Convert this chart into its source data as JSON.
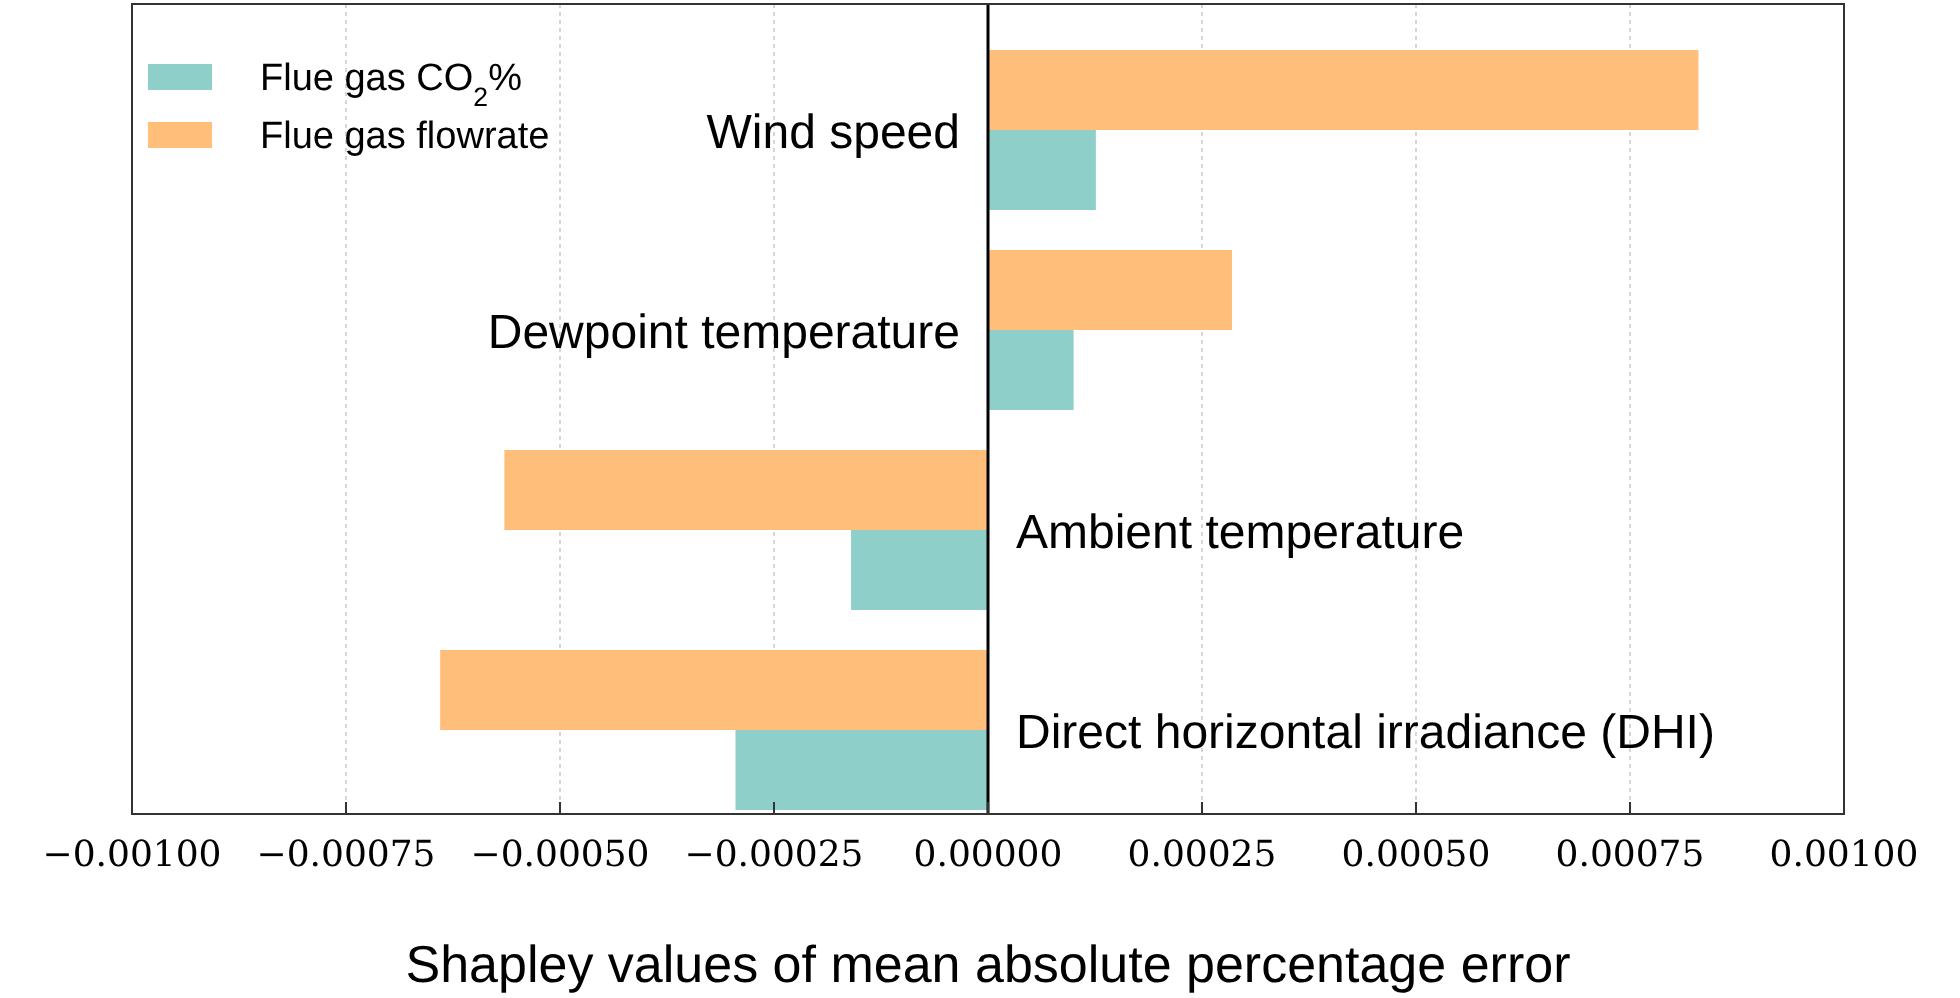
{
  "chart_data": {
    "type": "bar",
    "orientation": "horizontal",
    "xlabel": "Shapley values of mean absolute percentage error",
    "categories": [
      "Wind speed",
      "Dewpoint temperature",
      "Ambient temperature",
      "Direct horizontal irradiance (DHI)"
    ],
    "series": [
      {
        "name": "Flue gas flowrate",
        "color": "#ffbe7a",
        "values": [
          0.00083,
          0.000285,
          -0.000565,
          -0.00064
        ]
      },
      {
        "name": "Flue gas CO$_{2}$%",
        "color": "#8ecfc9",
        "values": [
          0.000126,
          0.0001,
          -0.00016,
          -0.000295
        ]
      }
    ],
    "xlim": [
      -0.001,
      0.001
    ],
    "xticks": [
      {
        "value": -0.001,
        "label": "−0.00100"
      },
      {
        "value": -0.00075,
        "label": "−0.00075"
      },
      {
        "value": -0.0005,
        "label": "−0.00050"
      },
      {
        "value": -0.00025,
        "label": "−0.00025"
      },
      {
        "value": 0,
        "label": "0.00000"
      },
      {
        "value": 0.00025,
        "label": "0.00025"
      },
      {
        "value": 0.0005,
        "label": "0.00050"
      },
      {
        "value": 0.00075,
        "label": "0.00075"
      },
      {
        "value": 0.001,
        "label": "0.00100"
      }
    ],
    "grid": "x",
    "legend": "top left"
  }
}
